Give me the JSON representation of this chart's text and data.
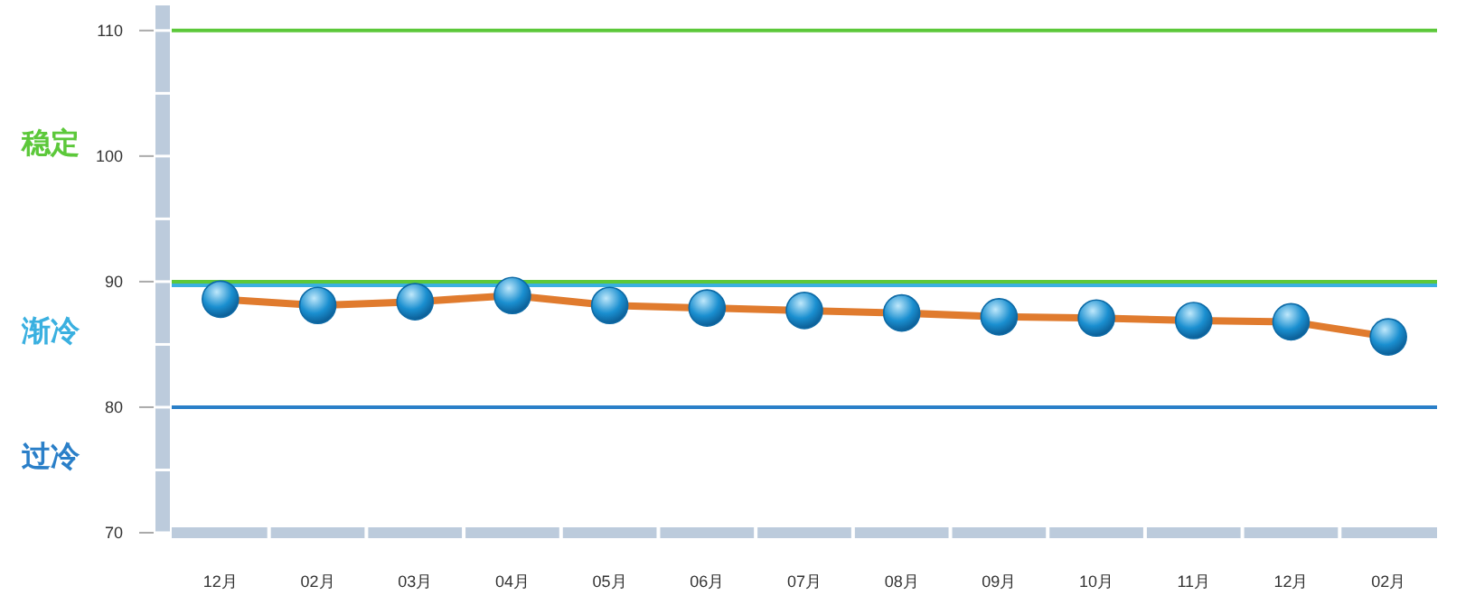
{
  "chart_data": {
    "type": "line",
    "categories": [
      "12月",
      "02月",
      "03月",
      "04月",
      "05月",
      "06月",
      "07月",
      "08月",
      "09月",
      "10月",
      "11月",
      "12月",
      "02月"
    ],
    "series": [
      {
        "color": "#e07b2e",
        "values": [
          88.6,
          88.1,
          88.4,
          88.9,
          88.1,
          87.9,
          87.7,
          87.5,
          87.2,
          87.1,
          86.9,
          86.8,
          85.6
        ]
      }
    ],
    "ylim": [
      70,
      112
    ],
    "yticks": [
      70,
      {
        "value": 75,
        "label": null
      },
      80,
      {
        "value": 85,
        "label": null
      },
      90,
      {
        "value": 95,
        "label": null
      },
      100,
      {
        "value": 105,
        "label": null
      },
      110
    ],
    "ref_lines": [
      {
        "axis": "y",
        "value": 110,
        "color": "#5cc83a"
      },
      {
        "axis": "y",
        "value": 90,
        "color": "#5cc83a"
      },
      {
        "axis": "y",
        "value": 89.7,
        "color": "#3ab0e0"
      },
      {
        "axis": "y",
        "value": 80,
        "color": "#2a7fc8"
      }
    ],
    "annotations": [
      "稳定",
      "渐冷",
      "过冷"
    ],
    "marker": "circle",
    "line_style": "solid"
  }
}
